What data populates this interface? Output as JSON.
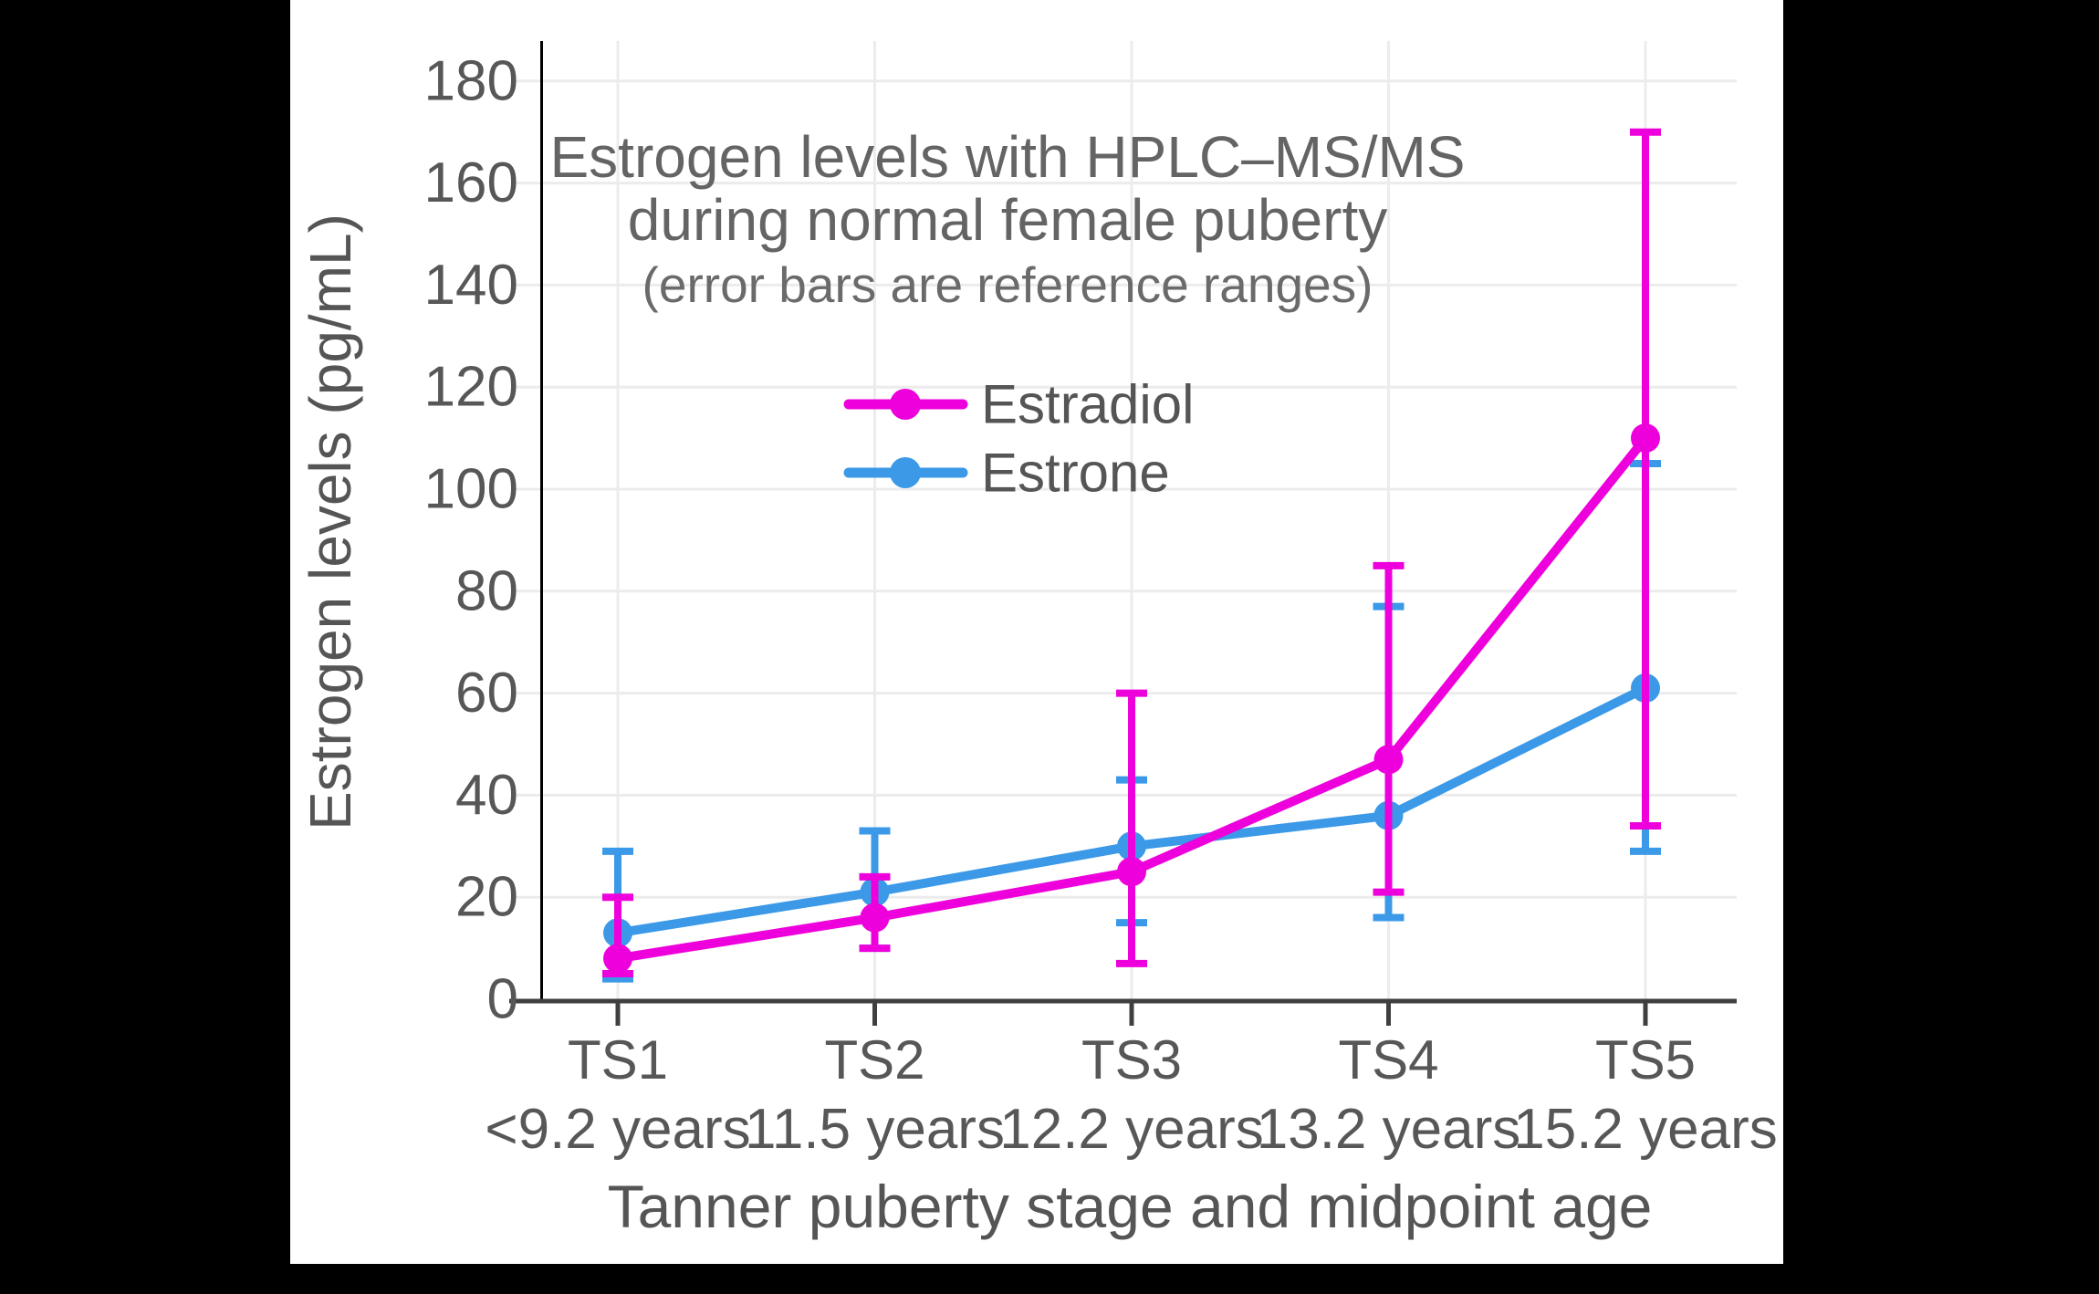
{
  "figure": {
    "letterbox_color": "#000000",
    "canvas_color": "#ffffff"
  },
  "chart_data": {
    "type": "line",
    "title_lines": [
      "Estrogen levels with HPLC–MS/MS",
      "during normal female puberty"
    ],
    "subtitle": "(error bars are reference ranges)",
    "ylabel": "Estrogen levels (pg/mL)",
    "xlabel": "Tanner puberty stage and midpoint age",
    "units": "pg/mL",
    "categories": [
      "TS1",
      "TS2",
      "TS3",
      "TS4",
      "TS5"
    ],
    "category_sublabels": [
      "<9.2 years",
      "11.5 years",
      "12.2 years",
      "13.2 years",
      "15.2 years"
    ],
    "y_axis": {
      "min": 0,
      "max": 188,
      "tick_step": 20,
      "tick_labels": [
        "0",
        "20",
        "40",
        "60",
        "80",
        "100",
        "120",
        "140",
        "160",
        "180"
      ]
    },
    "grid": true,
    "legend": {
      "position": "upper-center",
      "order": [
        "Estradiol",
        "Estrone"
      ]
    },
    "series": [
      {
        "name": "Estradiol",
        "color": "#ee00dc",
        "values": [
          8,
          16,
          25,
          47,
          110
        ],
        "err_low": [
          5,
          10,
          7,
          21,
          34
        ],
        "err_high": [
          20,
          24,
          60,
          85,
          170
        ]
      },
      {
        "name": "Estrone",
        "color": "#3b99e8",
        "values": [
          13,
          21,
          30,
          36,
          61
        ],
        "err_low": [
          4,
          10,
          15,
          16,
          29
        ],
        "err_high": [
          29,
          33,
          43,
          77,
          105
        ]
      }
    ]
  },
  "colors": {
    "gridline": "#ececec",
    "x_axis_line": "#3f3f3f",
    "y_axis_line": "#000000",
    "tick_text": "#575757"
  }
}
